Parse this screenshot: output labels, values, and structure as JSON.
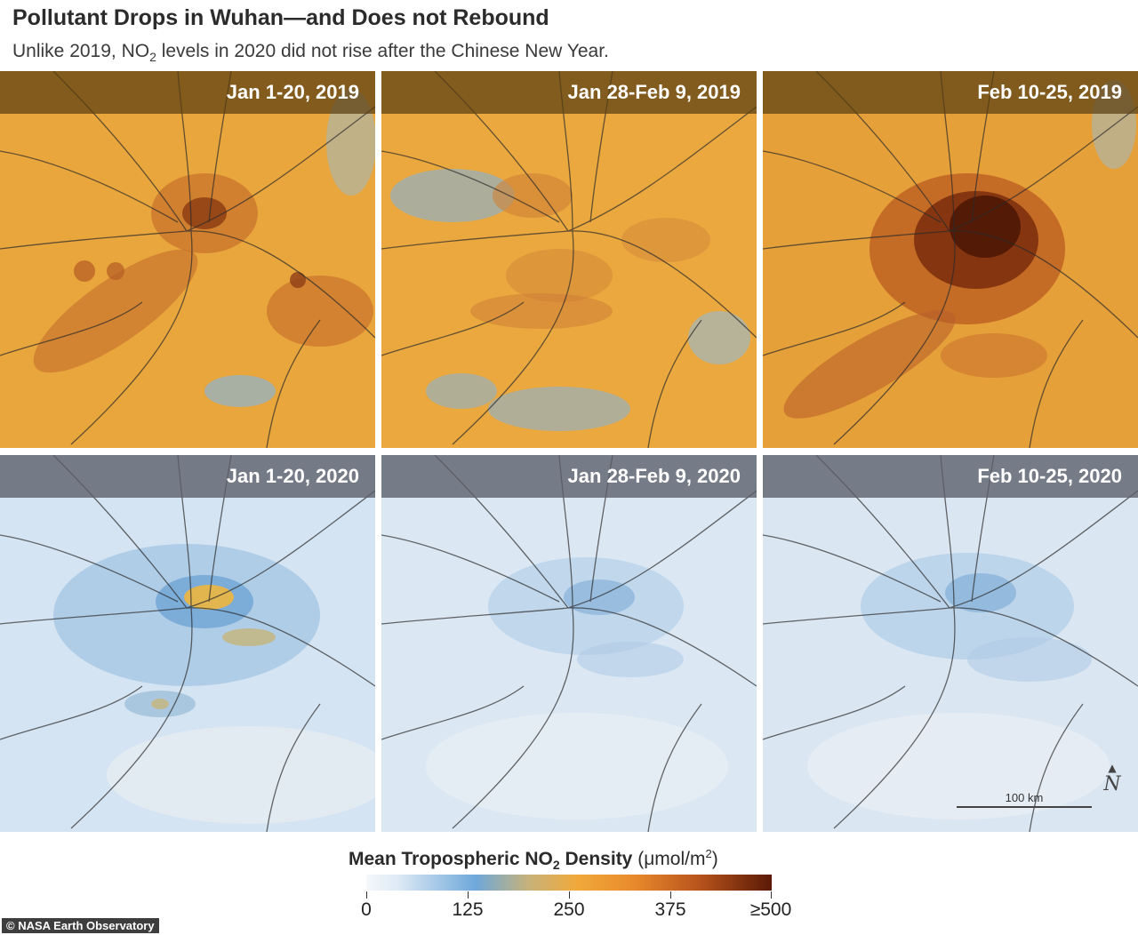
{
  "header": {
    "title": "Pollutant Drops in Wuhan—and Does not Rebound",
    "subtitle_prefix": "Unlike 2019, NO",
    "subtitle_sub": "2",
    "subtitle_suffix": " levels in 2020 did not rise after the Chinese New Year."
  },
  "panels": [
    {
      "label": "Jan 1-20, 2019",
      "year": "2019"
    },
    {
      "label": "Jan 28-Feb 9, 2019",
      "year": "2019"
    },
    {
      "label": "Feb 10-25, 2019",
      "year": "2019"
    },
    {
      "label": "Jan 1-20, 2020",
      "year": "2020"
    },
    {
      "label": "Jan 28-Feb 9, 2020",
      "year": "2020"
    },
    {
      "label": "Feb 10-25, 2020",
      "year": "2020"
    }
  ],
  "scale_bar": {
    "label": "100 km"
  },
  "north_arrow": {
    "label": "N"
  },
  "legend": {
    "title_prefix": "Mean Tropospheric NO",
    "title_sub": "2",
    "title_suffix": " Density ",
    "unit_prefix": "(μmol/m",
    "unit_sup": "2",
    "unit_suffix": ")",
    "ticks": [
      "0",
      "125",
      "250",
      "375",
      "≥500"
    ]
  },
  "credit": "© NASA Earth Observatory",
  "colors": {
    "map_2019_base": "#e8a43a",
    "map_2020_base": "#d6e6f4",
    "hotspot_dark": "#5a1a06",
    "low_blue": "#7fb2de",
    "roads": "#2a2a2a"
  }
}
